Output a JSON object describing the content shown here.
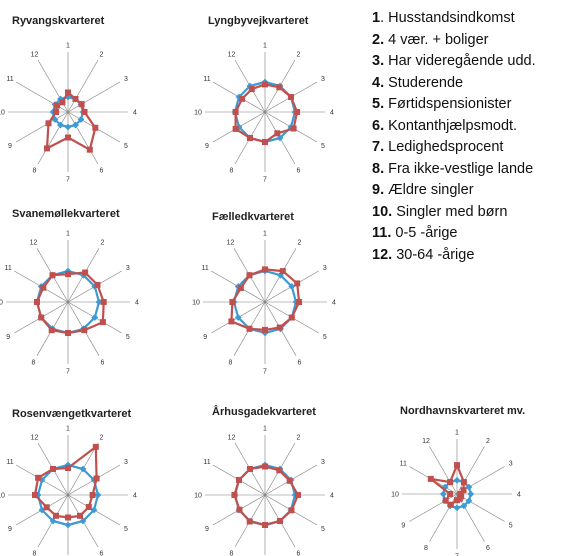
{
  "legend": [
    {
      "num": "1",
      "sep": ". ",
      "text": "Husstandsindkomst"
    },
    {
      "num": "2.",
      "sep": " ",
      "text": "4 vær. + boliger"
    },
    {
      "num": "3.",
      "sep": " ",
      "text": "Har videregående udd."
    },
    {
      "num": "4.",
      "sep": " ",
      "text": "Studerende"
    },
    {
      "num": "5.",
      "sep": " ",
      "text": "Førtidspensionister"
    },
    {
      "num": "6.",
      "sep": " ",
      "text": "Kontanthjælpsmodt."
    },
    {
      "num": "7.",
      "sep": " ",
      "text": "Ledighedsprocent"
    },
    {
      "num": "8.",
      "sep": " ",
      "text": "Fra ikke-vestlige lande"
    },
    {
      "num": "9.",
      "sep": " ",
      "text": "Ældre singler"
    },
    {
      "num": "10.",
      "sep": " ",
      "text": "Singler med børn"
    },
    {
      "num": "11.",
      "sep": " ",
      "text": "0-5 -årige"
    },
    {
      "num": "12.",
      "sep": " ",
      "text": "30-64 -årige"
    }
  ],
  "colors": {
    "city": "#3d9ad4",
    "district": "#c0504d",
    "grid": "#7f7f7f"
  },
  "chart_data": [
    {
      "type": "radar",
      "title": "Ryvangskvarteret",
      "categories": [
        "1",
        "2",
        "3",
        "4",
        "5",
        "6",
        "7",
        "8",
        "9",
        "10",
        "11",
        "12"
      ],
      "rmax": 4,
      "series": [
        {
          "values": [
            1,
            1,
            1,
            1,
            1,
            1,
            1,
            1,
            1,
            1,
            1,
            1
          ]
        },
        {
          "values": [
            1.3,
            1.0,
            1.05,
            1.1,
            2.1,
            2.9,
            1.7,
            2.8,
            1.5,
            0.8,
            0.85,
            0.75
          ]
        }
      ]
    },
    {
      "type": "radar",
      "title": "Lyngbyvejkvarteret",
      "categories": [
        "1",
        "2",
        "3",
        "4",
        "5",
        "6",
        "7",
        "8",
        "9",
        "10",
        "11",
        "12"
      ],
      "rmax": 2,
      "series": [
        {
          "values": [
            1,
            1,
            1,
            1,
            1,
            1,
            1,
            1,
            1,
            1,
            1,
            1
          ]
        },
        {
          "values": [
            0.92,
            0.95,
            1.0,
            1.07,
            1.1,
            0.82,
            1.0,
            1.0,
            1.13,
            0.98,
            0.88,
            0.88
          ]
        }
      ]
    },
    {
      "type": "radar",
      "title": "Svanemøllekvarteret",
      "categories": [
        "1",
        "2",
        "3",
        "4",
        "5",
        "6",
        "7",
        "8",
        "9",
        "10",
        "11",
        "12"
      ],
      "rmax": 2,
      "series": [
        {
          "values": [
            1,
            1,
            1,
            1,
            1,
            1,
            1,
            1,
            1,
            1,
            1,
            1
          ]
        },
        {
          "values": [
            0.9,
            1.1,
            1.1,
            1.15,
            1.3,
            1.05,
            1.0,
            1.05,
            1.0,
            1.0,
            0.92,
            1.0
          ]
        }
      ]
    },
    {
      "type": "radar",
      "title": "Fælledkvarteret",
      "categories": [
        "1",
        "2",
        "3",
        "4",
        "5",
        "6",
        "7",
        "8",
        "9",
        "10",
        "11",
        "12"
      ],
      "rmax": 2,
      "series": [
        {
          "values": [
            1,
            1,
            1,
            1,
            1,
            1,
            1,
            1,
            1,
            1,
            1,
            1
          ]
        },
        {
          "values": [
            1.05,
            1.15,
            1.2,
            1.1,
            1.0,
            0.95,
            0.9,
            1.0,
            1.25,
            1.05,
            0.9,
            1.0
          ]
        }
      ]
    },
    {
      "type": "radar",
      "title": "Rosenvængetkvarteret",
      "categories": [
        "1",
        "2",
        "3",
        "4",
        "5",
        "6",
        "7",
        "8",
        "9",
        "10",
        "11",
        "12"
      ],
      "rmax": 2,
      "series": [
        {
          "values": [
            1,
            1,
            1,
            1,
            1,
            1,
            1,
            1,
            1,
            1,
            1,
            1
          ]
        },
        {
          "values": [
            0.9,
            1.85,
            1.1,
            0.82,
            0.8,
            0.8,
            0.75,
            0.8,
            0.82,
            1.1,
            1.15,
            1.0
          ]
        }
      ]
    },
    {
      "type": "radar",
      "title": "Århusgadekvarteret",
      "categories": [
        "1",
        "2",
        "3",
        "4",
        "5",
        "6",
        "7",
        "8",
        "9",
        "10",
        "11",
        "12"
      ],
      "rmax": 2,
      "series": [
        {
          "values": [
            1,
            1,
            1,
            1,
            1,
            1,
            1,
            1,
            1,
            1,
            1,
            1
          ]
        },
        {
          "values": [
            0.95,
            0.95,
            0.95,
            1.1,
            1.02,
            1.0,
            1.0,
            1.02,
            0.98,
            1.02,
            1.0,
            1.0
          ]
        }
      ]
    },
    {
      "type": "radar",
      "title": "Nordhavnskvarteret mv.",
      "categories": [
        "1",
        "2",
        "3",
        "4",
        "5",
        "6",
        "7",
        "8",
        "9",
        "10",
        "11",
        "12"
      ],
      "rmax": 4,
      "series": [
        {
          "values": [
            1,
            1,
            1,
            1,
            1,
            1,
            1,
            1,
            1,
            1,
            1,
            1
          ]
        },
        {
          "values": [
            2.1,
            1.0,
            0.55,
            0.25,
            0.35,
            0.4,
            0.45,
            0.9,
            0.95,
            0.5,
            2.2,
            1.0
          ]
        }
      ]
    }
  ]
}
